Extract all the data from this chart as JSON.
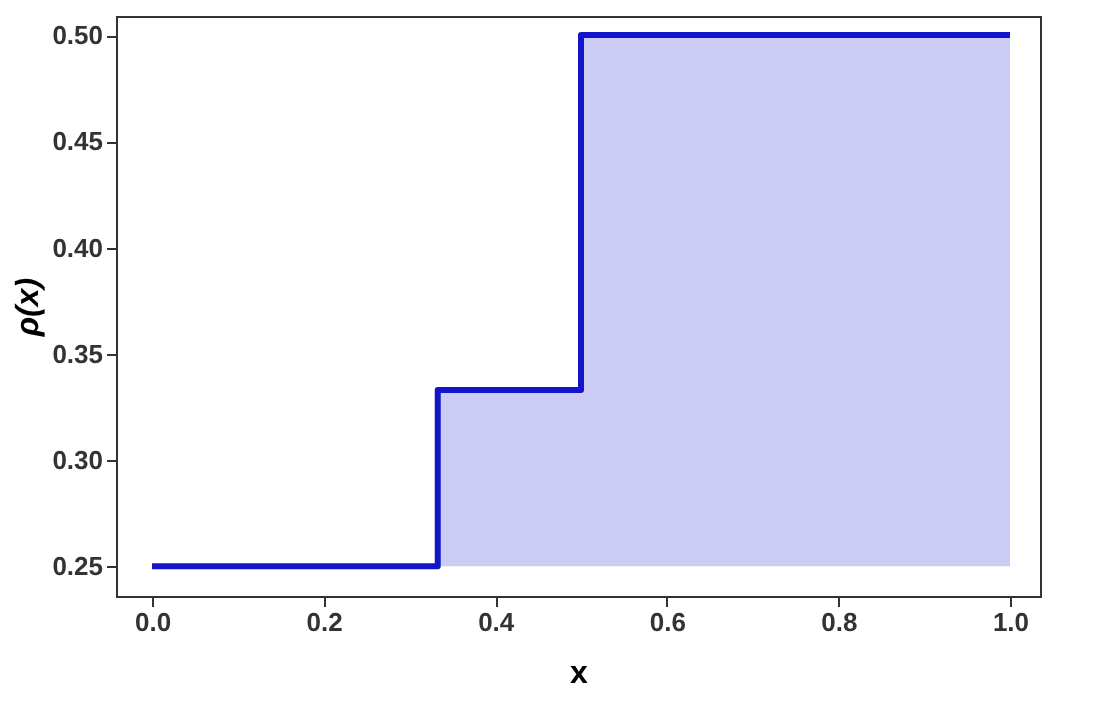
{
  "chart_data": {
    "type": "step",
    "xlabel": "x",
    "ylabel": "ρ(x)",
    "x": [
      0,
      0.333,
      0.5,
      1
    ],
    "series": [
      {
        "color": "#1414c8",
        "values": [
          0.25,
          0.333,
          0.5,
          0.5
        ]
      }
    ],
    "xlim": [
      -0.042,
      1.035
    ],
    "ylim": [
      0.236,
      0.509
    ],
    "xticks": [
      {
        "value": 0,
        "label": "0.0"
      },
      {
        "value": 0.2,
        "label": "0.2"
      },
      {
        "value": 0.4,
        "label": "0.4"
      },
      {
        "value": 0.6,
        "label": "0.6"
      },
      {
        "value": 0.8,
        "label": "0.8"
      },
      {
        "value": 1,
        "label": "1.0"
      }
    ],
    "yticks": [
      0.25,
      {
        "value": 0.3,
        "label": "0.30"
      },
      0.35,
      {
        "value": 0.4,
        "label": "0.40"
      },
      0.45,
      {
        "value": 0.5,
        "label": "0.50"
      }
    ]
  }
}
